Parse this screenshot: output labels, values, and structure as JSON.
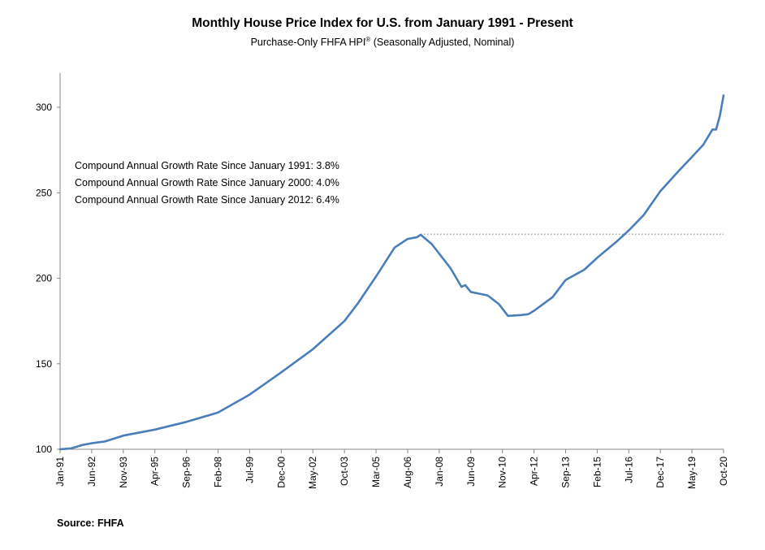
{
  "chart_data": {
    "type": "line",
    "title": "Monthly House Price Index for U.S. from January 1991 - Present",
    "subtitle_main": "Purchase-Only FHFA HPI",
    "subtitle_sup": "®",
    "subtitle_tail": " (Seasonally Adjusted, Nominal)",
    "xlabel": "",
    "ylabel": "",
    "ylim": [
      100,
      320
    ],
    "yticks": [
      100,
      150,
      200,
      250,
      300
    ],
    "x_start_month_index": 0,
    "x_end_month_index": 357,
    "xticks": [
      {
        "label": "Jan-91",
        "m": 0
      },
      {
        "label": "Jun-92",
        "m": 17
      },
      {
        "label": "Nov-93",
        "m": 34
      },
      {
        "label": "Apr-95",
        "m": 51
      },
      {
        "label": "Sep-96",
        "m": 68
      },
      {
        "label": "Feb-98",
        "m": 85
      },
      {
        "label": "Jul-99",
        "m": 102
      },
      {
        "label": "Dec-00",
        "m": 119
      },
      {
        "label": "May-02",
        "m": 136
      },
      {
        "label": "Oct-03",
        "m": 153
      },
      {
        "label": "Mar-05",
        "m": 170
      },
      {
        "label": "Aug-06",
        "m": 187
      },
      {
        "label": "Jan-08",
        "m": 204
      },
      {
        "label": "Jun-09",
        "m": 221
      },
      {
        "label": "Nov-10",
        "m": 238
      },
      {
        "label": "Apr-12",
        "m": 255
      },
      {
        "label": "Sep-13",
        "m": 272
      },
      {
        "label": "Feb-15",
        "m": 289
      },
      {
        "label": "Jul-16",
        "m": 306
      },
      {
        "label": "Dec-17",
        "m": 323
      },
      {
        "label": "May-19",
        "m": 340
      },
      {
        "label": "Oct-20",
        "m": 357
      }
    ],
    "series": [
      {
        "name": "Purchase-Only FHFA HPI (SA, Nominal)",
        "color": "#4a7ebb",
        "points": [
          [
            0,
            100
          ],
          [
            6,
            100.5
          ],
          [
            12,
            102.5
          ],
          [
            17,
            103.5
          ],
          [
            24,
            104.5
          ],
          [
            34,
            108
          ],
          [
            51,
            111.5
          ],
          [
            68,
            116
          ],
          [
            85,
            121.5
          ],
          [
            102,
            132
          ],
          [
            119,
            145
          ],
          [
            136,
            158.5
          ],
          [
            153,
            175
          ],
          [
            160,
            185
          ],
          [
            170,
            201
          ],
          [
            180,
            218
          ],
          [
            187,
            223
          ],
          [
            192,
            224
          ],
          [
            194,
            225.5
          ],
          [
            200,
            220
          ],
          [
            210,
            206
          ],
          [
            216,
            195
          ],
          [
            218,
            196
          ],
          [
            221,
            192
          ],
          [
            230,
            190
          ],
          [
            236,
            185
          ],
          [
            241,
            178
          ],
          [
            248,
            178.5
          ],
          [
            252,
            179
          ],
          [
            255,
            181
          ],
          [
            265,
            189
          ],
          [
            272,
            199
          ],
          [
            282,
            205
          ],
          [
            289,
            212
          ],
          [
            300,
            222
          ],
          [
            306,
            228
          ],
          [
            314,
            237
          ],
          [
            323,
            251
          ],
          [
            333,
            263
          ],
          [
            340,
            271
          ],
          [
            346,
            278
          ],
          [
            351,
            287
          ],
          [
            353,
            287
          ],
          [
            355,
            295
          ],
          [
            357,
            307
          ]
        ]
      }
    ],
    "reference_line": {
      "value": 225.8,
      "from_m": 194,
      "to_m": 357,
      "style": "dotted",
      "color": "#999999"
    },
    "annotations": [
      "Compound Annual Growth Rate Since January 1991:  3.8%",
      "Compound Annual Growth Rate Since January 2000:  4.0%",
      "Compound Annual Growth Rate Since January 2012:  6.4%"
    ],
    "source": "Source: FHFA",
    "axis_color": "#888888",
    "grid": false
  }
}
